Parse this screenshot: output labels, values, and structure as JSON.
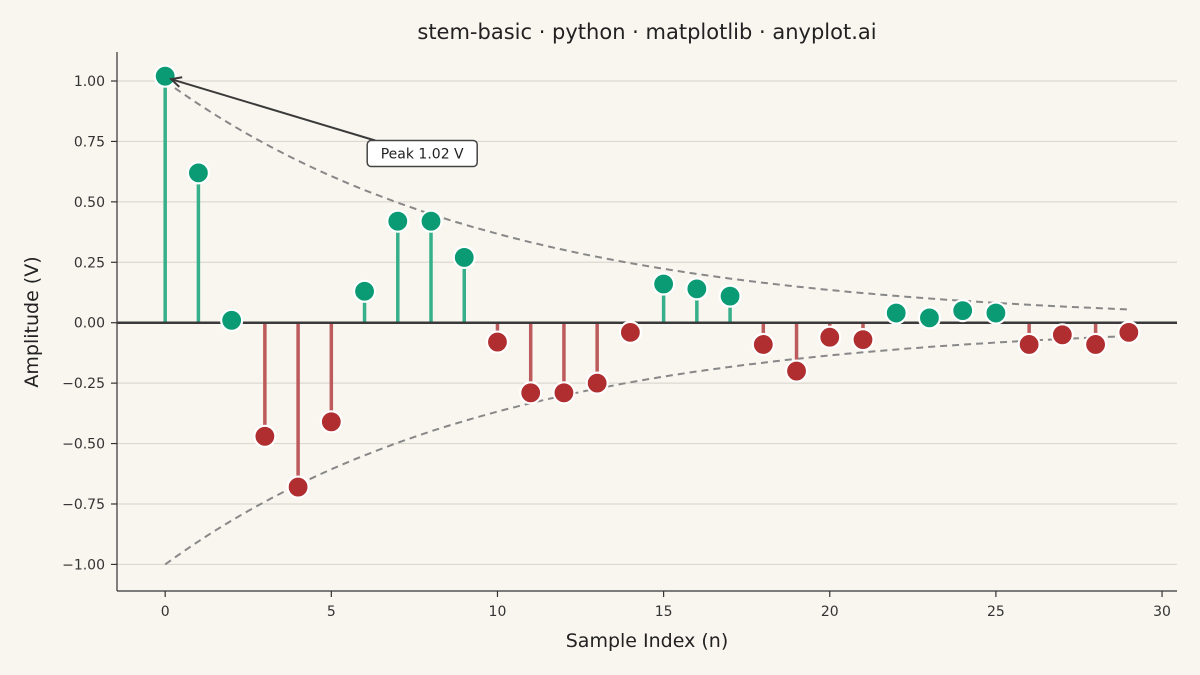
{
  "chart_data": {
    "type": "stem",
    "title": "stem-basic · python · matplotlib · anyplot.ai",
    "xlabel": "Sample Index (n)",
    "ylabel": "Amplitude (V)",
    "xlim": [
      -1.45,
      30.45
    ],
    "ylim": [
      -1.11,
      1.12
    ],
    "xticks": [
      0,
      5,
      10,
      15,
      20,
      25,
      30
    ],
    "xtick_labels": [
      "0",
      "5",
      "10",
      "15",
      "20",
      "25",
      "30"
    ],
    "yticks": [
      -1.0,
      -0.75,
      -0.5,
      -0.25,
      0.0,
      0.25,
      0.5,
      0.75,
      1.0
    ],
    "ytick_labels": [
      "−1.00",
      "−0.75",
      "−0.50",
      "−0.25",
      "0.00",
      "0.25",
      "0.50",
      "0.75",
      "1.00"
    ],
    "grid": "horizontal",
    "x": [
      0,
      1,
      2,
      3,
      4,
      5,
      6,
      7,
      8,
      9,
      10,
      11,
      12,
      13,
      14,
      15,
      16,
      17,
      18,
      19,
      20,
      21,
      22,
      23,
      24,
      25,
      26,
      27,
      28,
      29
    ],
    "values": [
      1.02,
      0.62,
      0.01,
      -0.47,
      -0.68,
      -0.41,
      0.13,
      0.42,
      0.42,
      0.27,
      -0.08,
      -0.29,
      -0.29,
      -0.25,
      -0.04,
      0.16,
      0.14,
      0.11,
      -0.09,
      -0.2,
      -0.06,
      -0.07,
      0.04,
      0.02,
      0.05,
      0.04,
      -0.09,
      -0.05,
      -0.09,
      -0.04
    ],
    "envelope": {
      "amplitude": 1.0,
      "decay": 0.1,
      "x_range": [
        0,
        29
      ],
      "style": "dashed"
    },
    "baseline": 0,
    "colors": {
      "positive": "#0a9b74",
      "positive_stem": "#36b08b",
      "negative": "#b02e2f",
      "negative_stem": "#bd5a5b",
      "envelope": "#888888",
      "baseline": "#3a3a3a",
      "grid": "#dcd9d1",
      "background": "#f9f6f0"
    },
    "annotation": {
      "text": "Peak 1.02 V",
      "x": 0,
      "y": 1.02,
      "text_x": 6.2,
      "text_y": 0.7
    }
  }
}
